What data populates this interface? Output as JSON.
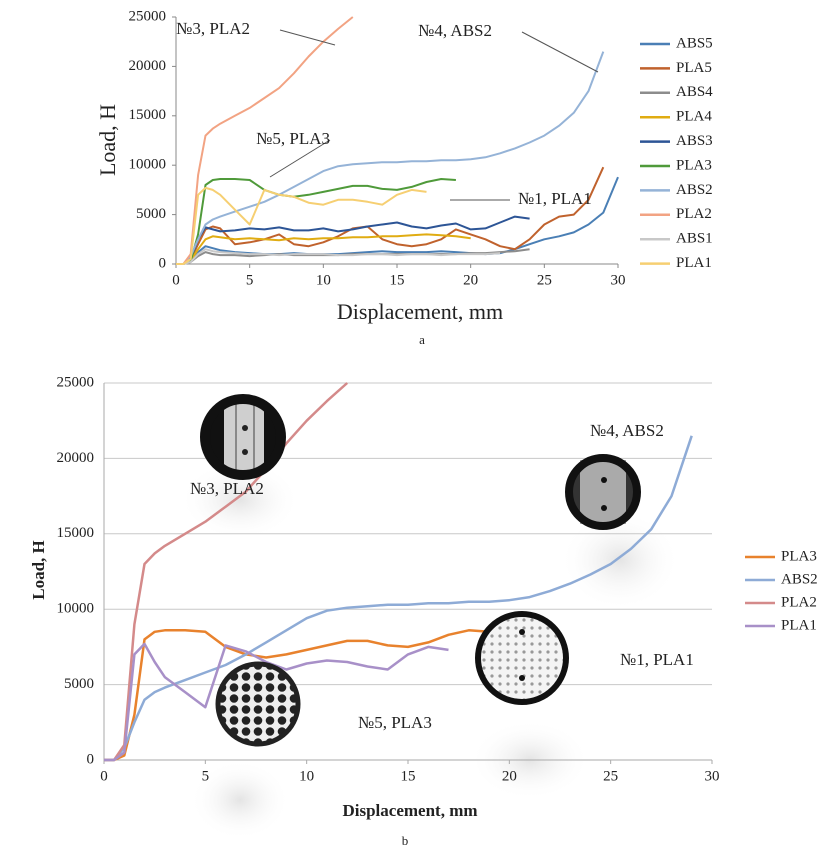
{
  "chart_data": [
    {
      "type": "line",
      "x_label": "Displacement, mm",
      "y_label": "Load, H",
      "caption": "a",
      "x": [
        0,
        0.5,
        1,
        1.5,
        2,
        2.5,
        3,
        4,
        5,
        6,
        7,
        8,
        9,
        10,
        11,
        12,
        13,
        14,
        15,
        16,
        17,
        18,
        19,
        20,
        21,
        22,
        23,
        24,
        25,
        26,
        27,
        28,
        29,
        30
      ],
      "xlim": [
        0,
        30
      ],
      "xticks": [
        0,
        5,
        10,
        15,
        20,
        25,
        30
      ],
      "ylim": [
        0,
        25000
      ],
      "yticks": [
        0,
        5000,
        10000,
        15000,
        20000,
        25000
      ],
      "grid": false,
      "legend": "right",
      "annotations": [
        "№3, PLA2",
        "№4, ABS2",
        "№5, PLA3",
        "№1, PLA1"
      ],
      "series": [
        {
          "name": "ABS5",
          "color": "#4a7fb5",
          "values": [
            0,
            0,
            300,
            1200,
            1800,
            1600,
            1400,
            1200,
            1100,
            1000,
            1000,
            1100,
            1000,
            1000,
            1000,
            1100,
            1200,
            1300,
            1200,
            1200,
            1200,
            1300,
            1200,
            1100,
            1000,
            1100,
            1500,
            2000,
            2500,
            2800,
            3200,
            4000,
            5200,
            8800
          ]
        },
        {
          "name": "PLA5",
          "color": "#c0622d",
          "values": [
            0,
            0,
            500,
            2000,
            3500,
            3800,
            3600,
            2000,
            2200,
            2500,
            3000,
            2000,
            1800,
            2200,
            2800,
            3600,
            3800,
            2500,
            2000,
            1800,
            2000,
            2500,
            3500,
            3000,
            2500,
            1800,
            1500,
            2500,
            4000,
            4800,
            5000,
            6500,
            9800,
            null
          ]
        },
        {
          "name": "ABS4",
          "color": "#8c8c8c",
          "values": [
            0,
            0,
            200,
            800,
            1200,
            1000,
            900,
            900,
            800,
            900,
            1000,
            900,
            900,
            900,
            900,
            1000,
            1000,
            1000,
            1000,
            1000,
            1000,
            1000,
            1000,
            1100,
            1100,
            1200,
            1300,
            1500,
            null,
            null,
            null,
            null,
            null,
            null
          ]
        },
        {
          "name": "PLA4",
          "color": "#e0ac12",
          "values": [
            0,
            0,
            300,
            1500,
            2500,
            2800,
            2700,
            2500,
            2600,
            2500,
            2400,
            2600,
            2500,
            2600,
            2600,
            2700,
            2700,
            2800,
            2800,
            2900,
            3000,
            2900,
            2800,
            2600,
            null,
            null,
            null,
            null,
            null,
            null,
            null,
            null,
            null,
            null
          ]
        },
        {
          "name": "ABS3",
          "color": "#2d5596",
          "values": [
            0,
            0,
            500,
            2500,
            3700,
            3500,
            3300,
            3400,
            3600,
            3500,
            3700,
            3400,
            3400,
            3600,
            3300,
            3500,
            3800,
            4000,
            4200,
            3800,
            3600,
            3900,
            4100,
            3500,
            3600,
            4200,
            4800,
            4600,
            null,
            null,
            null,
            null,
            null,
            null
          ]
        },
        {
          "name": "PLA3",
          "color": "#4f9a3a",
          "values": [
            0,
            0,
            300,
            3000,
            8000,
            8500,
            8600,
            8600,
            8500,
            7500,
            7000,
            6800,
            7000,
            7300,
            7600,
            7900,
            7900,
            7600,
            7500,
            7800,
            8300,
            8600,
            8500,
            null,
            null,
            null,
            null,
            null,
            null,
            null,
            null,
            null,
            null,
            null
          ]
        },
        {
          "name": "ABS2",
          "color": "#95b3d7",
          "values": [
            0,
            0,
            800,
            2500,
            4000,
            4500,
            4800,
            5300,
            5800,
            6300,
            7000,
            7800,
            8600,
            9400,
            9900,
            10100,
            10200,
            10300,
            10300,
            10400,
            10400,
            10500,
            10500,
            10600,
            10800,
            11200,
            11700,
            12300,
            13000,
            14000,
            15300,
            17500,
            21500,
            null
          ]
        },
        {
          "name": "PLA2",
          "color": "#f2a383",
          "values": [
            0,
            0,
            1000,
            9000,
            13000,
            13700,
            14200,
            15000,
            15800,
            16800,
            17800,
            19300,
            21000,
            22500,
            23800,
            25000,
            null,
            null,
            null,
            null,
            null,
            null,
            null,
            null,
            null,
            null,
            null,
            null,
            null,
            null,
            null,
            null,
            null,
            null
          ]
        },
        {
          "name": "ABS1",
          "color": "#c8c8c8",
          "values": [
            0,
            0,
            200,
            1000,
            1500,
            1300,
            1200,
            1100,
            1000,
            1000,
            900,
            1000,
            1000,
            1000,
            900,
            900,
            1000,
            1000,
            900,
            1000,
            1000,
            900,
            1000,
            1000,
            1000,
            1100,
            null,
            null,
            null,
            null,
            null,
            null,
            null,
            null
          ]
        },
        {
          "name": "PLA1",
          "color": "#f6cf72",
          "values": [
            0,
            0,
            500,
            7000,
            7700,
            7500,
            7000,
            5500,
            4000,
            7500,
            7000,
            6800,
            6200,
            6000,
            6500,
            6500,
            6300,
            6000,
            7000,
            7500,
            7300,
            null,
            null,
            null,
            null,
            null,
            null,
            null,
            null,
            null,
            null,
            null,
            null,
            null
          ]
        }
      ]
    },
    {
      "type": "line",
      "x_label": "Displacement, mm",
      "y_label": "Load, H",
      "caption": "b",
      "x": [
        0,
        0.5,
        1,
        1.5,
        2,
        2.5,
        3,
        4,
        5,
        6,
        7,
        8,
        9,
        10,
        11,
        12,
        13,
        14,
        15,
        16,
        17,
        18,
        19,
        20,
        21,
        22,
        23,
        24,
        25,
        26,
        27,
        28,
        29,
        30
      ],
      "xlim": [
        0,
        30
      ],
      "xticks": [
        0,
        5,
        10,
        15,
        20,
        25,
        30
      ],
      "ylim": [
        0,
        25000
      ],
      "yticks": [
        0,
        5000,
        10000,
        15000,
        20000,
        25000
      ],
      "grid": true,
      "legend": "right",
      "annotations": [
        "№3, PLA2",
        "№4, ABS2",
        "№1, PLA1",
        "№5, PLA3"
      ],
      "series": [
        {
          "name": "PLA3",
          "color": "#e8822d",
          "values": [
            0,
            0,
            300,
            3000,
            8000,
            8500,
            8600,
            8600,
            8500,
            7500,
            7000,
            6800,
            7000,
            7300,
            7600,
            7900,
            7900,
            7600,
            7500,
            7800,
            8300,
            8600,
            8500,
            null,
            null,
            null,
            null,
            null,
            null,
            null,
            null,
            null,
            null,
            null
          ]
        },
        {
          "name": "ABS2",
          "color": "#8eabd6",
          "values": [
            0,
            0,
            800,
            2500,
            4000,
            4500,
            4800,
            5300,
            5800,
            6300,
            7000,
            7800,
            8600,
            9400,
            9900,
            10100,
            10200,
            10300,
            10300,
            10400,
            10400,
            10500,
            10500,
            10600,
            10800,
            11200,
            11700,
            12300,
            13000,
            14000,
            15300,
            17500,
            21500,
            null
          ]
        },
        {
          "name": "PLA2",
          "color": "#d48a8a",
          "values": [
            0,
            0,
            1000,
            9000,
            13000,
            13700,
            14200,
            15000,
            15800,
            16800,
            17800,
            19300,
            21000,
            22500,
            23800,
            25000,
            null,
            null,
            null,
            null,
            null,
            null,
            null,
            null,
            null,
            null,
            null,
            null,
            null,
            null,
            null,
            null,
            null,
            null
          ]
        },
        {
          "name": "PLA1",
          "color": "#a890c8",
          "values": [
            0,
            0,
            500,
            7000,
            7700,
            6500,
            5500,
            4500,
            3500,
            7600,
            7200,
            6500,
            6000,
            6400,
            6600,
            6500,
            6200,
            6000,
            7000,
            7500,
            7300,
            null,
            null,
            null,
            null,
            null,
            null,
            null,
            null,
            null,
            null,
            null,
            null,
            null
          ]
        }
      ]
    }
  ]
}
